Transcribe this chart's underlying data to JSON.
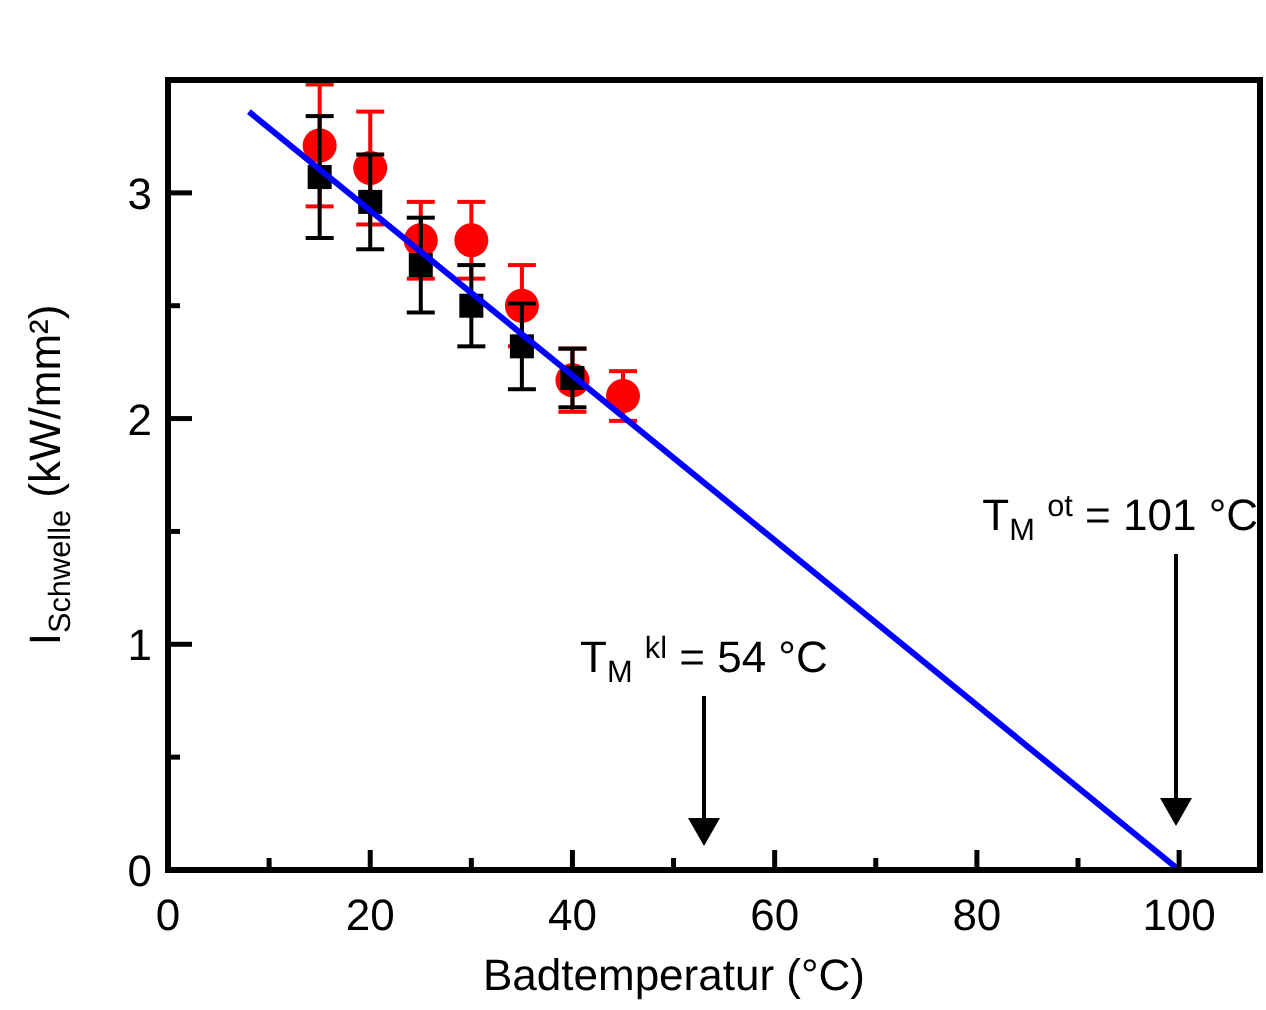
{
  "chart_data": {
    "type": "scatter",
    "xlabel": "Badtemperatur (°C)",
    "ylabel": "I$_{Schwelle}$ (kW/mm²)",
    "xlim": [
      0,
      108
    ],
    "xticks": [
      0,
      {
        "value": 10,
        "label": null
      },
      20,
      {
        "value": 30,
        "label": null
      },
      40,
      {
        "value": 50,
        "label": null
      },
      60,
      {
        "value": 70,
        "label": null
      },
      80,
      {
        "value": 90,
        "label": null
      },
      100
    ],
    "ylim": [
      0,
      3.5
    ],
    "yticks": [
      0,
      {
        "value": 0.5,
        "label": null
      },
      1,
      {
        "value": 1.5,
        "label": null
      },
      2,
      {
        "value": 2.5,
        "label": null
      },
      3
    ],
    "grid": false,
    "series": [
      {
        "marker": "circle",
        "color": "#ff0000",
        "x": [
          15,
          20,
          25,
          30,
          35,
          40,
          45
        ],
        "values": [
          3.21,
          3.11,
          2.79,
          2.79,
          2.5,
          2.17,
          2.1
        ],
        "errors": [
          0.27,
          0.25,
          0.17,
          0.17,
          0.18,
          0.14,
          0.11
        ]
      },
      {
        "marker": "square",
        "color": "#000000",
        "x": [
          15,
          20,
          25,
          30,
          35,
          40
        ],
        "values": [
          3.07,
          2.96,
          2.68,
          2.5,
          2.32,
          2.18
        ],
        "errors": [
          0.27,
          0.21,
          0.21,
          0.18,
          0.19,
          0.13
        ]
      },
      {
        "type": "line",
        "marker": "none",
        "color": "#0000ff",
        "x": [
          8,
          100
        ],
        "values": [
          3.36,
          0
        ]
      }
    ],
    "annotations": [
      "T$_{M}$ $^{kl}$ = 54 °C",
      "T$_{M}$ $^{ot}$ = 101 °C"
    ]
  }
}
